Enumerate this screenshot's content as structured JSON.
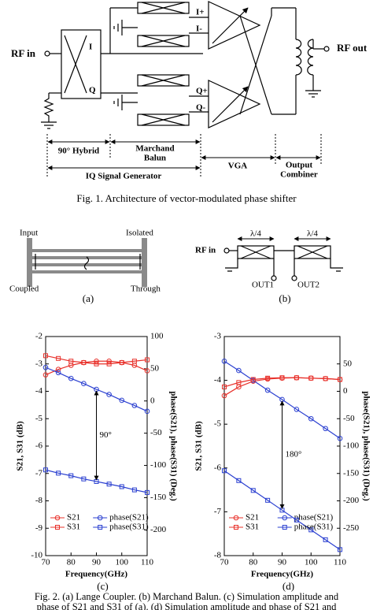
{
  "fig1": {
    "rf_in": "RF in",
    "i": "I",
    "q": "Q",
    "i_plus": "I+",
    "i_minus": "I-",
    "q_plus": "Q+",
    "q_minus": "Q-",
    "rf_out": "RF out",
    "hybrid": "90° Hybrid",
    "balun": [
      "Marchand",
      "Balun"
    ],
    "vga": "VGA",
    "combiner": [
      "Output",
      "Combiner"
    ],
    "iq": "IQ Signal Generator",
    "caption": "Fig. 1. Architecture of vector-modulated phase shifter"
  },
  "fig2a": {
    "input": "Input",
    "isolated": "Isolated",
    "coupled": "Coupled",
    "through": "Through",
    "label": "(a)"
  },
  "fig2b": {
    "rf_in": "RF in",
    "quarter": [
      "λ/4",
      "λ/4"
    ],
    "out1": "OUT1",
    "out2": "OUT2",
    "label": "(b)"
  },
  "chart_data": [
    {
      "type": "line",
      "label": "(c)",
      "x": [
        70,
        75,
        80,
        85,
        90,
        95,
        100,
        105,
        110
      ],
      "xlim": [
        70,
        110
      ],
      "xticks": [
        70,
        80,
        90,
        100,
        110
      ],
      "ylim": [
        -10,
        -2
      ],
      "yticks": [
        -2,
        -3,
        -4,
        -5,
        -6,
        -7,
        -8,
        -9,
        -10
      ],
      "y2lim": [
        -240,
        100
      ],
      "y2ticks": [
        100,
        50,
        0,
        -50,
        -100,
        -150,
        -200
      ],
      "xlabel": "Frequency(GHz)",
      "ylabel": "S21, S31 (dB)",
      "y2label": "phase(S21), phase(S31) (Deg.)",
      "annotation": "90°",
      "series": [
        {
          "name": "S21",
          "color": "#e8302a",
          "marker": "circle",
          "values": [
            -3.4,
            -3.2,
            -3.05,
            -2.95,
            -2.9,
            -2.9,
            -2.95,
            -3.05,
            -3.25
          ]
        },
        {
          "name": "phase(S21)",
          "color": "#2a3fd0",
          "marker": "circle",
          "axis": "y2",
          "values": [
            52,
            44,
            35,
            27,
            18,
            10,
            1,
            -7,
            -16
          ]
        },
        {
          "name": "S31",
          "color": "#e8302a",
          "marker": "square",
          "values": [
            -2.7,
            -2.8,
            -2.9,
            -2.95,
            -3.0,
            -3.0,
            -2.95,
            -2.9,
            -2.85
          ]
        },
        {
          "name": "phase(S31)",
          "color": "#2a3fd0",
          "marker": "square",
          "axis": "y2",
          "values": [
            -107,
            -112,
            -116,
            -121,
            -125,
            -129,
            -133,
            -138,
            -142
          ]
        }
      ]
    },
    {
      "type": "line",
      "label": "(d)",
      "x": [
        70,
        75,
        80,
        85,
        90,
        95,
        100,
        105,
        110
      ],
      "xlim": [
        70,
        110
      ],
      "xticks": [
        70,
        80,
        90,
        100,
        110
      ],
      "ylim": [
        -8,
        -3
      ],
      "yticks": [
        -3,
        -4,
        -5,
        -6,
        -7,
        -8
      ],
      "y2lim": [
        -300,
        100
      ],
      "y2ticks": [
        50,
        0,
        -50,
        -100,
        -150,
        -200,
        -250
      ],
      "xlabel": "Frequency(GHz)",
      "ylabel": "S21, S31 (dB)",
      "y2label": "phase(S21), phase(S31) (Deg.)",
      "annotation": "180°",
      "series": [
        {
          "name": "S21",
          "color": "#e8302a",
          "marker": "circle",
          "values": [
            -4.35,
            -4.15,
            -4.02,
            -3.97,
            -3.95,
            -3.94,
            -3.95,
            -3.96,
            -3.98
          ]
        },
        {
          "name": "phase(S21)",
          "color": "#2a3fd0",
          "marker": "circle",
          "axis": "y2",
          "values": [
            55,
            38,
            20,
            2,
            -15,
            -33,
            -50,
            -68,
            -86
          ]
        },
        {
          "name": "S31",
          "color": "#e8302a",
          "marker": "square",
          "values": [
            -4.15,
            -4.05,
            -3.98,
            -3.95,
            -3.94,
            -3.94,
            -3.95,
            -3.96,
            -3.98
          ]
        },
        {
          "name": "phase(S31)",
          "color": "#2a3fd0",
          "marker": "square",
          "axis": "y2",
          "values": [
            -145,
            -163,
            -181,
            -199,
            -217,
            -235,
            -253,
            -271,
            -289
          ]
        }
      ]
    }
  ],
  "fig2_caption": [
    "Fig. 2. (a) Lange Coupler. (b) Marchand Balun. (c) Simulation amplitude and",
    "phase of S21 and S31 of (a). (d) Simulation amplitude and phase of S21 and"
  ]
}
